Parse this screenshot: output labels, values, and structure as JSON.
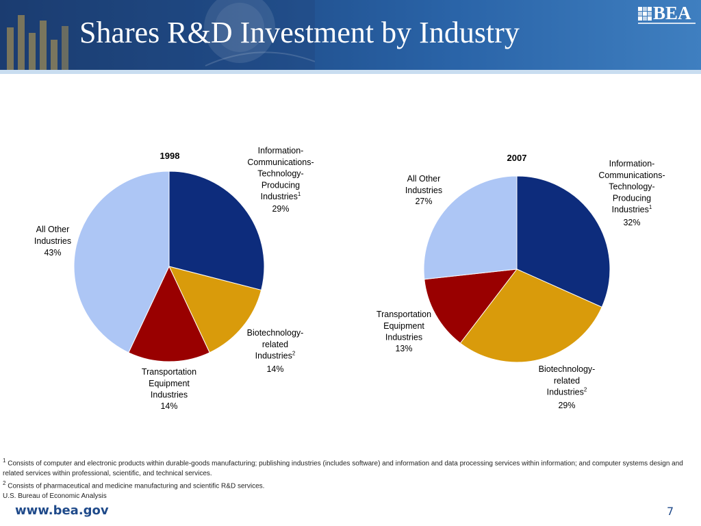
{
  "slide": {
    "title": "Shares R&D Investment by Industry",
    "logo_text": "BEA",
    "url": "www.bea.gov",
    "page_number": "7"
  },
  "colors": {
    "ict": "#0d2c7c",
    "biotech": "#d99b0b",
    "transport": "#990000",
    "other": "#adc6f5",
    "banner": "#1f4d8a",
    "url_text": "#1f4a8a"
  },
  "footnotes": {
    "fn1_marker": "1",
    "fn1_text": "Consists of computer and electronic products within durable-goods manufacturing; publishing industries (includes software) and information and data processing services within information; and computer systems design and related services within professional, scientific, and technical services.",
    "fn2_marker": "2",
    "fn2_text": "Consists of pharmaceutical and medicine manufacturing and scientific R&D services.",
    "source": "U.S. Bureau of Economic Analysis"
  },
  "chart_data": [
    {
      "type": "pie",
      "title": "1998",
      "categories": [
        "Information-Communications-Technology-Producing Industries",
        "Biotechnology-related Industries",
        "Transportation Equipment Industries",
        "All Other Industries"
      ],
      "values": [
        29,
        14,
        14,
        43
      ],
      "unit": "%",
      "label_lines": [
        [
          "Information-",
          "Communications-",
          "Technology-",
          "Producing",
          "Industries"
        ],
        [
          "Biotechnology-",
          "related",
          "Industries"
        ],
        [
          "Transportation",
          "Equipment",
          "Industries"
        ],
        [
          "All Other",
          "Industries"
        ]
      ],
      "footnote_refs": [
        "1",
        "2",
        "",
        ""
      ],
      "value_labels": [
        "29%",
        "14%",
        "14%",
        "43%"
      ]
    },
    {
      "type": "pie",
      "title": "2007",
      "categories": [
        "Information-Communications-Technology-Producing Industries",
        "Biotechnology-related Industries",
        "Transportation Equipment Industries",
        "All Other Industries"
      ],
      "values": [
        32,
        29,
        13,
        27
      ],
      "unit": "%",
      "label_lines": [
        [
          "Information-",
          "Communications-",
          "Technology-",
          "Producing",
          "Industries"
        ],
        [
          "Biotechnology-",
          "related",
          "Industries"
        ],
        [
          "Transportation",
          "Equipment",
          "Industries"
        ],
        [
          "All Other",
          "Industries"
        ]
      ],
      "footnote_refs": [
        "1",
        "2",
        "",
        ""
      ],
      "value_labels": [
        "32%",
        "29%",
        "13%",
        "27%"
      ]
    }
  ]
}
